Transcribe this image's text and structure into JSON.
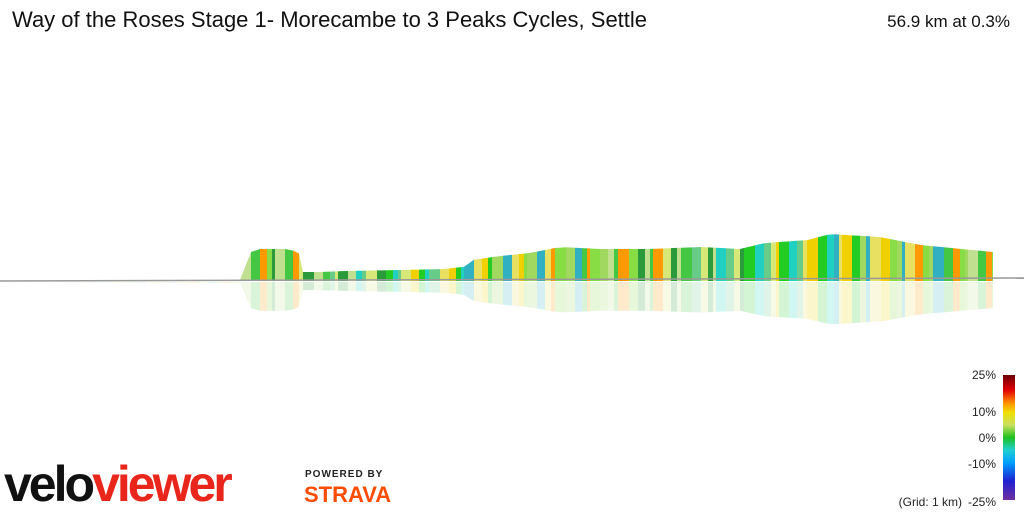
{
  "header": {
    "title": "Way of the Roses Stage 1- Morecambe to 3 Peaks Cycles, Settle",
    "summary": "56.9 km at 0.3%"
  },
  "legend": {
    "labels": [
      "25%",
      "10%",
      "0%",
      "-10%",
      "-25%"
    ],
    "grid_note": "(Grid: 1 km)"
  },
  "branding": {
    "logo_first": "velo",
    "logo_second": "viewer",
    "powered_by": "POWERED BY",
    "partner": "STRAVA"
  }
}
